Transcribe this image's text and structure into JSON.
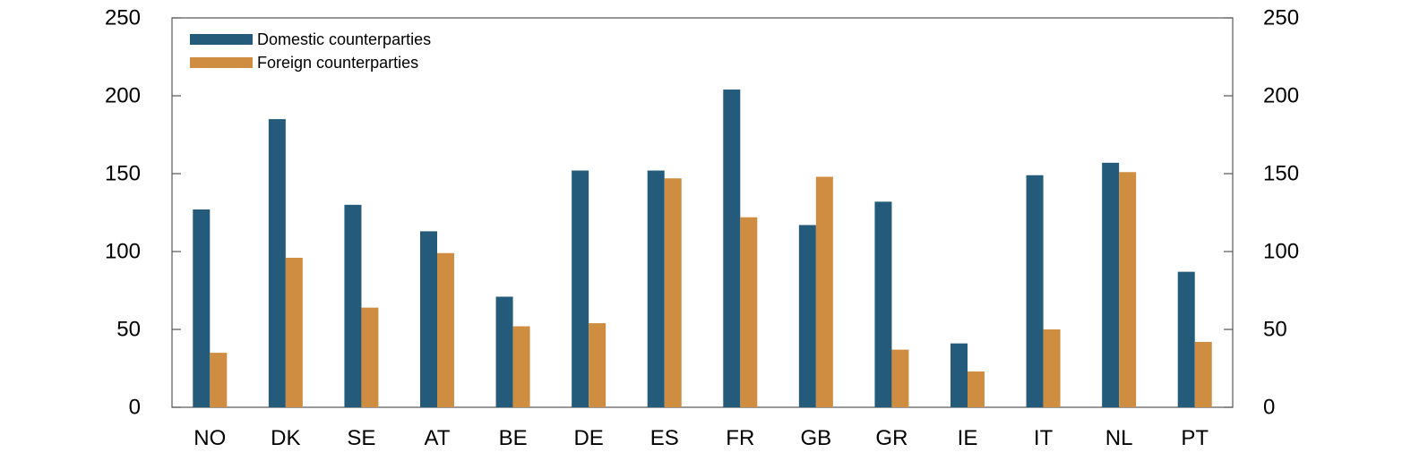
{
  "chart_data": {
    "type": "bar",
    "categories": [
      "NO",
      "DK",
      "SE",
      "AT",
      "BE",
      "DE",
      "ES",
      "FR",
      "GB",
      "GR",
      "IE",
      "IT",
      "NL",
      "PT"
    ],
    "series": [
      {
        "name": "Domestic counterparties",
        "color": "#245b7b",
        "values": [
          127,
          185,
          130,
          113,
          71,
          152,
          152,
          204,
          117,
          132,
          41,
          149,
          157,
          87
        ]
      },
      {
        "name": "Foreign counterparties",
        "color": "#cf8d41",
        "values": [
          35,
          96,
          64,
          99,
          52,
          54,
          147,
          122,
          148,
          37,
          23,
          50,
          151,
          42
        ]
      }
    ],
    "ylim": [
      0,
      250
    ],
    "yticks": [
      "0",
      "50",
      "100",
      "150",
      "200",
      "250"
    ],
    "ytick_values": [
      0,
      50,
      100,
      150,
      200,
      250
    ],
    "right_axis": true,
    "grid": false,
    "legend_position": "top-left"
  }
}
